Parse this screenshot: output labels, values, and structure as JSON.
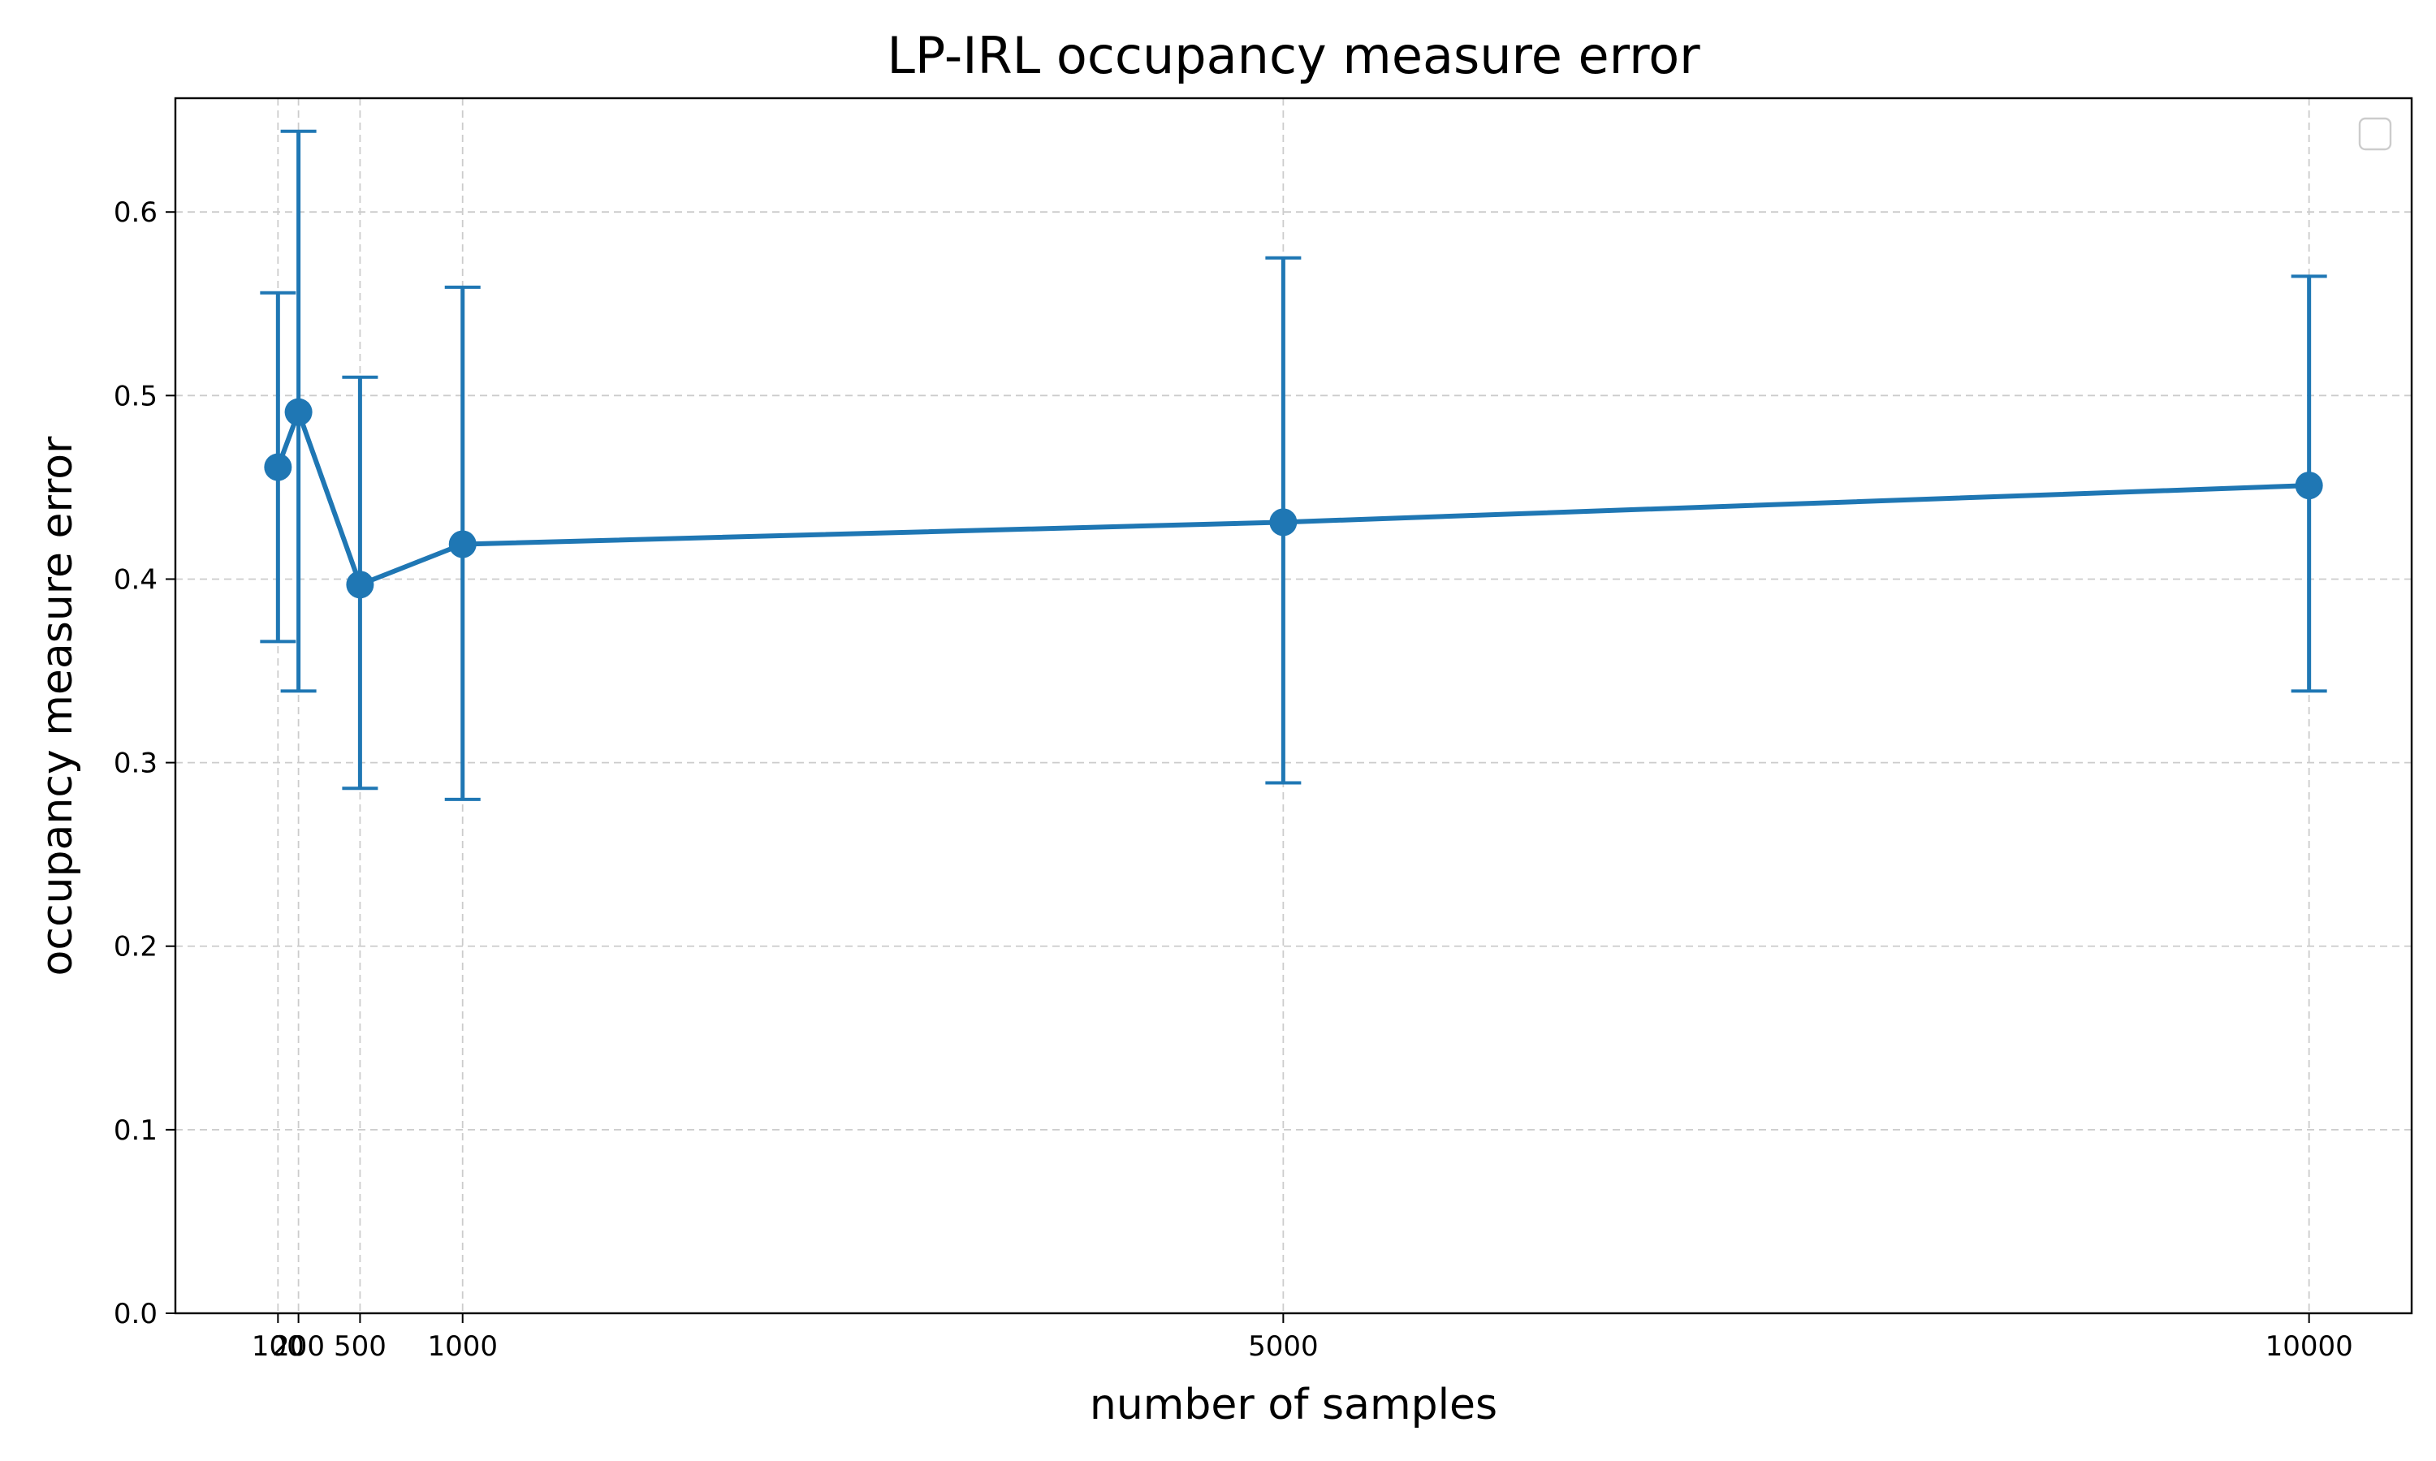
{
  "chart_data": {
    "type": "line",
    "title": "LP-IRL occupancy measure error",
    "xlabel": "number of samples",
    "ylabel": "occupancy measure error",
    "x": [
      100,
      200,
      500,
      1000,
      5000,
      10000
    ],
    "series": [
      {
        "values": [
          0.461,
          0.491,
          0.397,
          0.419,
          0.431,
          0.451
        ],
        "error_low": [
          0.366,
          0.339,
          0.286,
          0.28,
          0.289,
          0.339
        ],
        "error_high": [
          0.556,
          0.644,
          0.51,
          0.559,
          0.575,
          0.565
        ],
        "color": "#1f77b4"
      }
    ],
    "x_ticks": [
      100,
      200,
      500,
      1000,
      5000,
      10000
    ],
    "x_tick_labels": [
      "100",
      "200",
      "500",
      "1000",
      "5000",
      "10000"
    ],
    "y_ticks": [
      0.0,
      0.1,
      0.2,
      0.3,
      0.4,
      0.5,
      0.6
    ],
    "y_tick_labels": [
      "0.0",
      "0.1",
      "0.2",
      "0.3",
      "0.4",
      "0.5",
      "0.6"
    ],
    "xlim": [
      -400,
      10500
    ],
    "ylim": [
      0.0,
      0.662
    ],
    "grid": true,
    "legend": {
      "placement": "upper-right",
      "entries": []
    }
  }
}
